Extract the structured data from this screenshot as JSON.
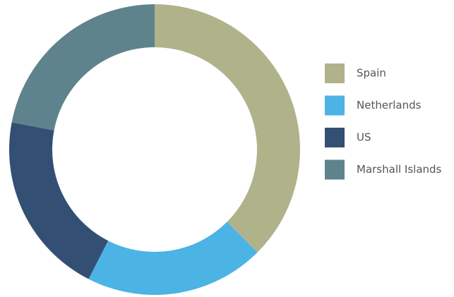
{
  "chart_data": {
    "type": "donut",
    "categories": [
      "Spain",
      "Netherlands",
      "US",
      "Marshall Islands"
    ],
    "values": [
      37.5,
      20,
      20.5,
      22
    ],
    "colors": [
      "#b0b38a",
      "#4cb3e5",
      "#344f74",
      "#5e838c"
    ],
    "legend": "right"
  }
}
